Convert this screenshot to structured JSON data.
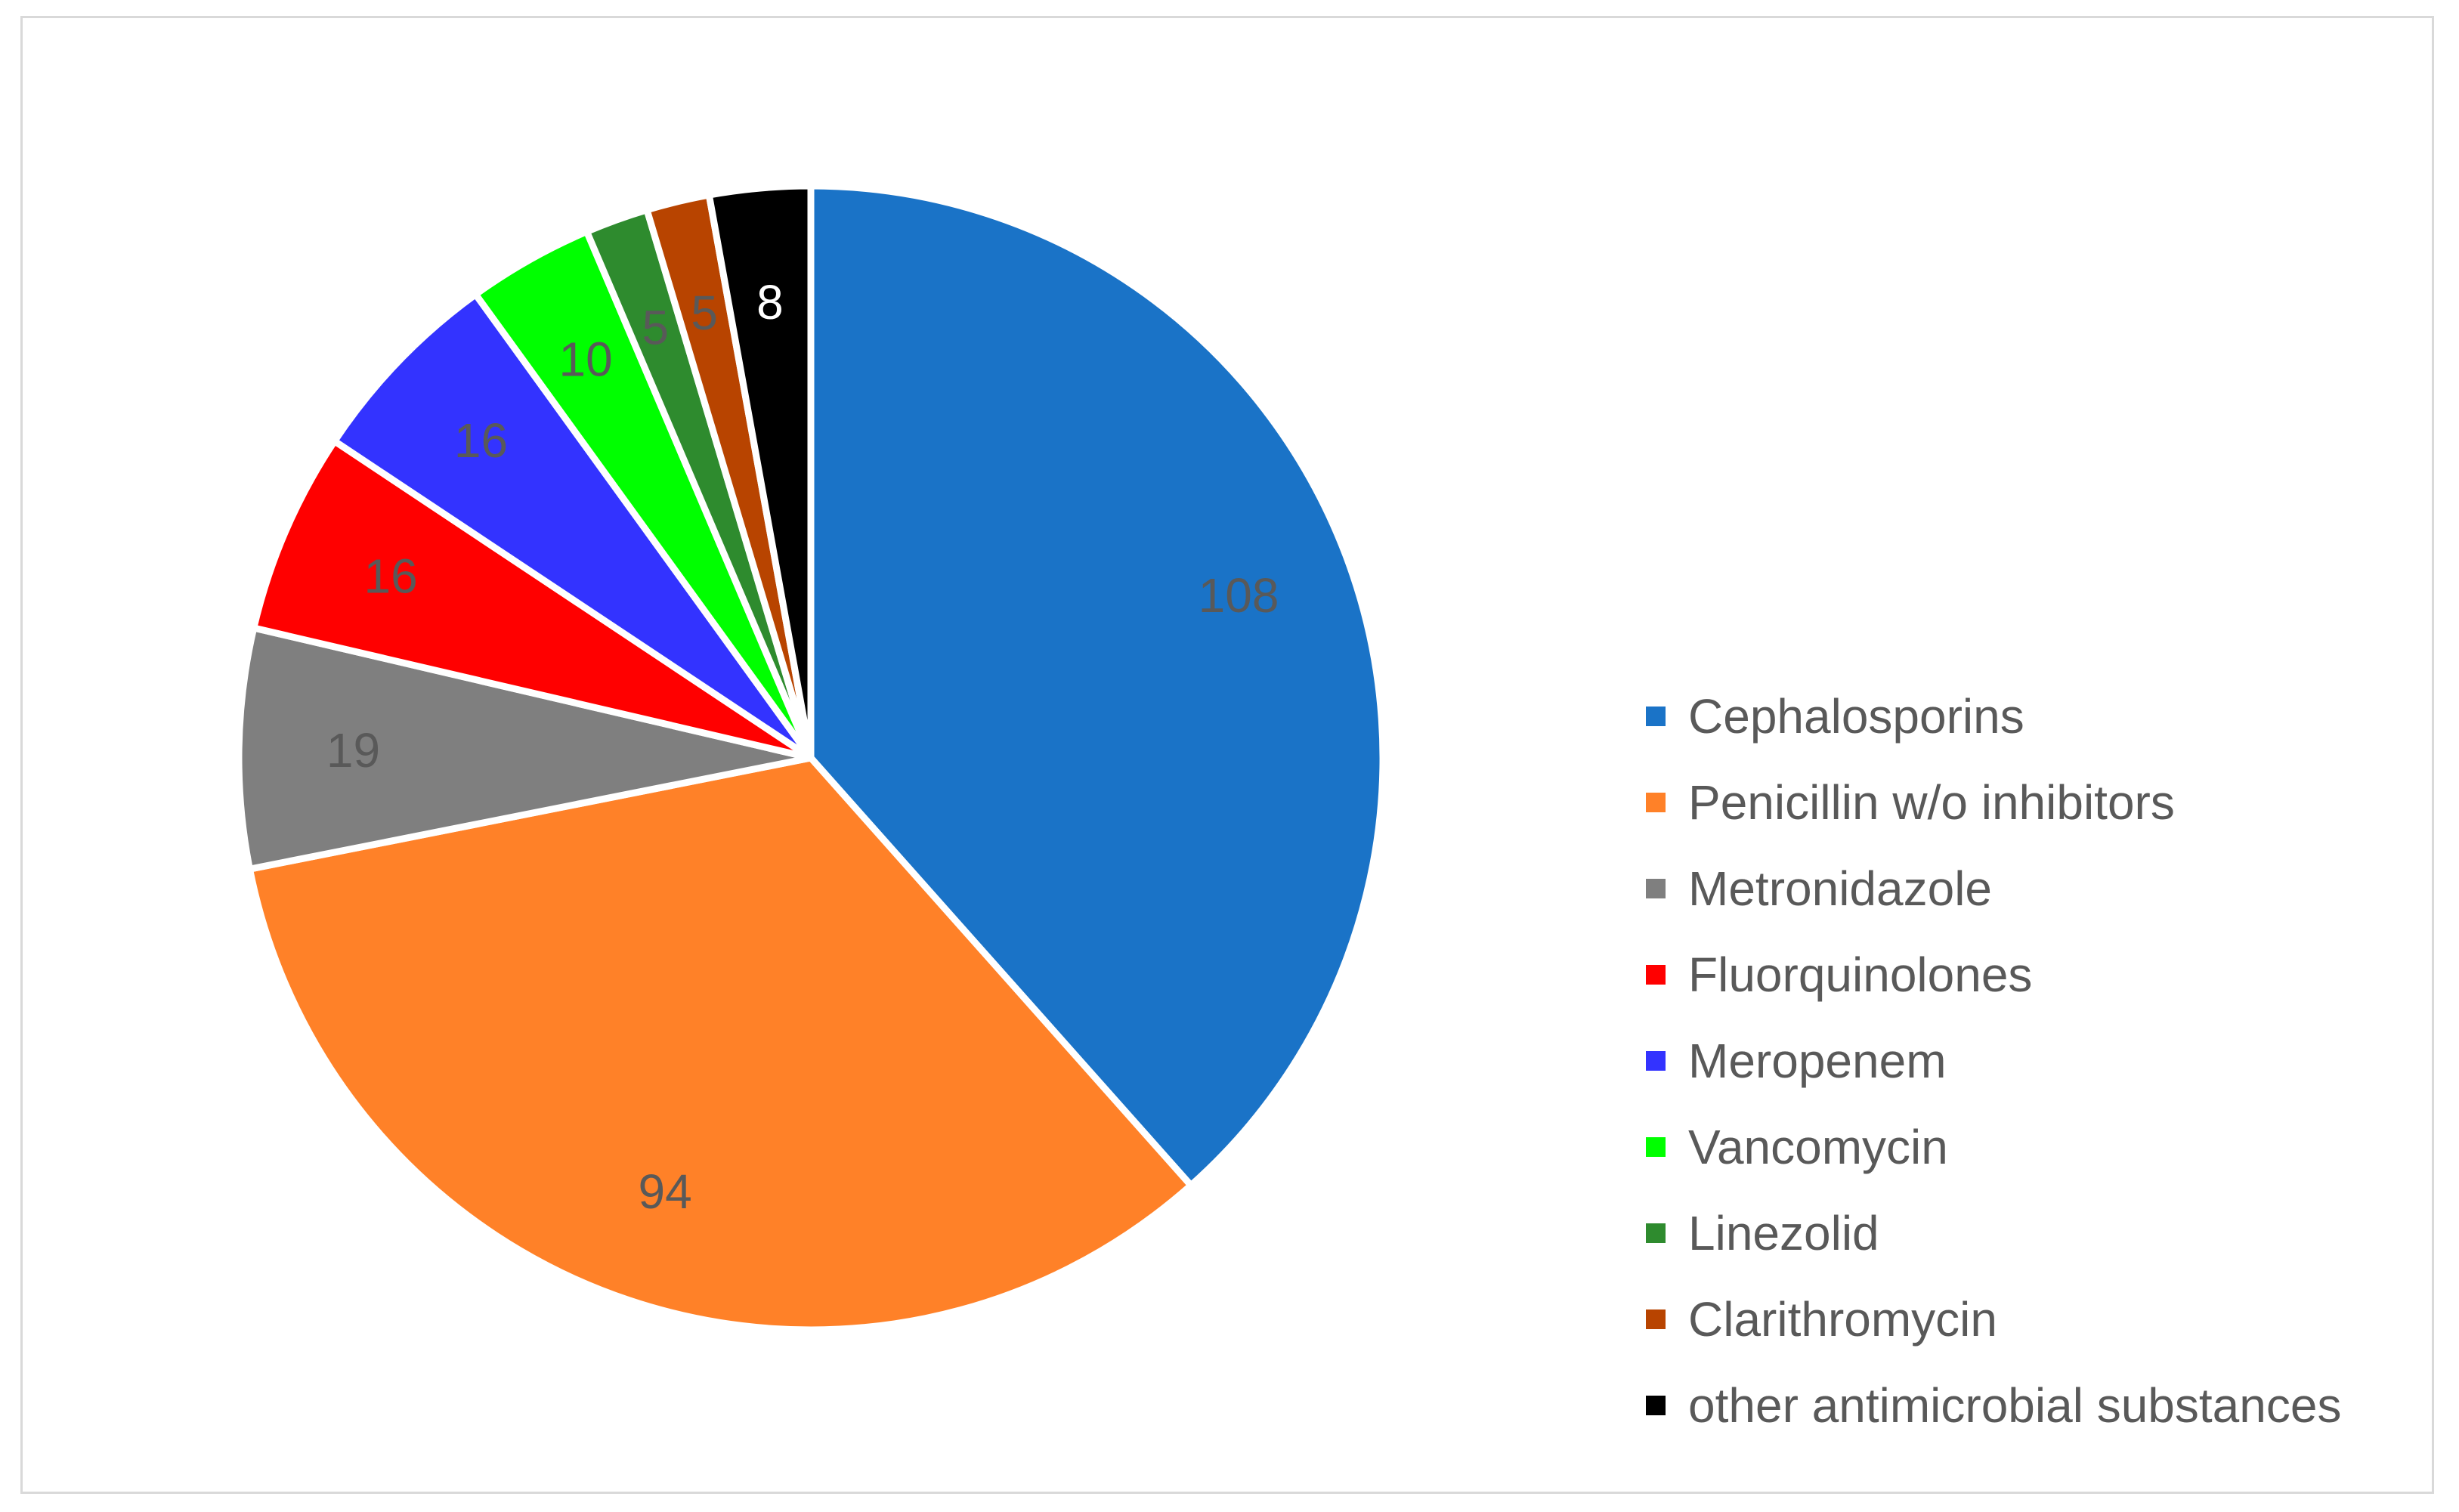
{
  "chart_data": {
    "type": "pie",
    "title": "",
    "legend_position": "right",
    "slices": [
      {
        "label": "Cephalosporins",
        "value": 108,
        "color": "#1a73c7",
        "label_color": "#595959"
      },
      {
        "label": "Penicillin w/o inhibitors",
        "value": 94,
        "color": "#ff8128",
        "label_color": "#595959"
      },
      {
        "label": "Metronidazole",
        "value": 19,
        "color": "#7f7f7f",
        "label_color": "#595959"
      },
      {
        "label": "Fluorquinolones",
        "value": 16,
        "color": "#ff0000",
        "label_color": "#595959"
      },
      {
        "label": "Meropenem",
        "value": 16,
        "color": "#3333ff",
        "label_color": "#595959"
      },
      {
        "label": "Vancomycin",
        "value": 10,
        "color": "#00ff00",
        "label_color": "#595959"
      },
      {
        "label": "Linezolid",
        "value": 5,
        "color": "#2e8b2e",
        "label_color": "#595959"
      },
      {
        "label": "Clarithromycin",
        "value": 5,
        "color": "#b84400",
        "label_color": "#595959"
      },
      {
        "label": "other antimicrobial substances",
        "value": 8,
        "color": "#000000",
        "label_color": "#ffffff"
      }
    ]
  }
}
